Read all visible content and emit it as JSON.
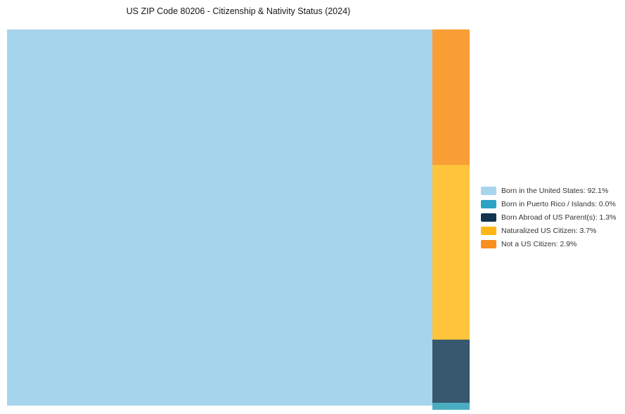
{
  "title": "US ZIP Code 80206 - Citizenship & Nativity Status (2024)",
  "chart_data": {
    "type": "treemap",
    "title": "US ZIP Code 80206 - Citizenship & Nativity Status (2024)",
    "unit": "%",
    "total_percent": 100,
    "legend_position": "right",
    "categories": [
      {
        "label": "Born in the United States",
        "value": 92.1,
        "legend_color": "#A8D4EC",
        "chart_color": "#A5D4EB"
      },
      {
        "label": "Born in Puerto Rico / Islands",
        "value": 0.0,
        "legend_color": "#2CA2C5",
        "chart_color": "#4AAEC3"
      },
      {
        "label": "Born Abroad of US Parent(s)",
        "value": 1.3,
        "legend_color": "#12344D",
        "chart_color": "#37586E"
      },
      {
        "label": "Naturalized US Citizen",
        "value": 3.7,
        "legend_color": "#FEB616",
        "chart_color": "#FEC53C"
      },
      {
        "label": "Not a US Citizen",
        "value": 2.9,
        "legend_color": "#F78E1E",
        "chart_color": "#F99F35"
      }
    ]
  },
  "legend": {
    "items": [
      {
        "text": "Born in the United States: 92.1%"
      },
      {
        "text": "Born in Puerto Rico / Islands: 0.0%"
      },
      {
        "text": "Born Abroad of US Parent(s): 1.3%"
      },
      {
        "text": "Naturalized US Citizen: 3.7%"
      },
      {
        "text": "Not a US Citizen: 2.9%"
      }
    ]
  },
  "background_color": "#FFFFFF"
}
